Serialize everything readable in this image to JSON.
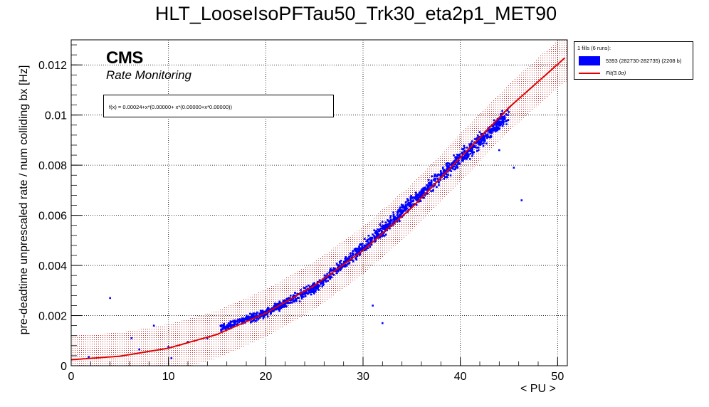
{
  "chart_data": {
    "type": "scatter",
    "title": "HLT_LooseIsoPFTau50_Trk30_eta2p1_MET90",
    "xlabel": "< PU >",
    "ylabel": "pre-deadtime unprescaled rate / num colliding bx [Hz]",
    "xlim": [
      0,
      51
    ],
    "ylim": [
      0,
      0.013
    ],
    "x_ticks": [
      "0",
      "10",
      "20",
      "30",
      "40",
      "50"
    ],
    "y_ticks": [
      "0",
      "0.002",
      "0.004",
      "0.006",
      "0.008",
      "0.01",
      "0.012"
    ],
    "grid": true,
    "legend_position": "outside-top-right",
    "experiment_label": "CMS",
    "sublabel": "Rate Monitoring",
    "fit_formula_text": "f(x) = 0.00024+x*(0.00000+ x*(0.00000+x*0.00000))",
    "fit": {
      "name": "Fit(3.0σ)",
      "color": "#e00000",
      "points": [
        [
          0,
          0.00024
        ],
        [
          5,
          0.00038
        ],
        [
          10,
          0.0007
        ],
        [
          15,
          0.00125
        ],
        [
          20,
          0.0021
        ],
        [
          25,
          0.0032
        ],
        [
          30,
          0.0046
        ],
        [
          35,
          0.0063
        ],
        [
          40,
          0.0083
        ],
        [
          45,
          0.0103
        ],
        [
          50.8,
          0.0123
        ]
      ],
      "band_halfwidth": 0.00095
    },
    "series": [
      {
        "name": "5393 (282730-282735) (2208 b)",
        "color": "#0000ff",
        "trend_points": [
          [
            15.3,
            0.0015
          ],
          [
            20,
            0.0021
          ],
          [
            25,
            0.0031
          ],
          [
            30,
            0.0047
          ],
          [
            35,
            0.0065
          ],
          [
            40,
            0.0083
          ],
          [
            45,
            0.01
          ]
        ],
        "scatter_spread": 0.00035,
        "outliers": [
          [
            1.8,
            0.00035
          ],
          [
            4.0,
            0.0027
          ],
          [
            6.2,
            0.0011
          ],
          [
            7.0,
            0.00065
          ],
          [
            8.5,
            0.0016
          ],
          [
            10,
            0.00075
          ],
          [
            10.3,
            0.0003
          ],
          [
            12.0,
            0.00095
          ],
          [
            14.0,
            0.0011
          ],
          [
            31.0,
            0.0024
          ],
          [
            32.0,
            0.0017
          ],
          [
            46.3,
            0.0066
          ],
          [
            45.5,
            0.0079
          ],
          [
            44.0,
            0.0086
          ],
          [
            43.5,
            0.0097
          ],
          [
            45.0,
            0.0103
          ]
        ]
      }
    ]
  },
  "legend": {
    "header": "1 fills (6 runs):",
    "items": [
      {
        "label": "5393 (282730-282735) (2208 b)",
        "kind": "box",
        "color": "#0000ff"
      },
      {
        "label": "Fit(3.0σ)",
        "kind": "line",
        "color": "#e00000"
      }
    ]
  }
}
